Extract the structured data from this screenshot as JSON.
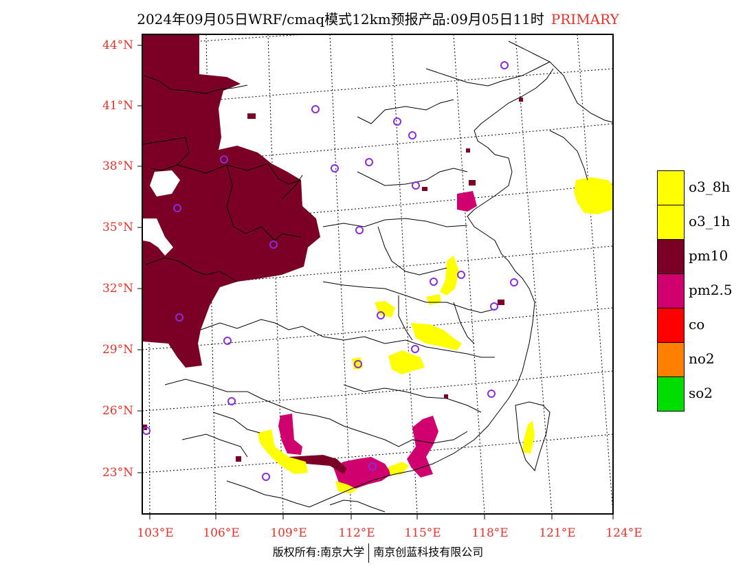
{
  "title": {
    "main": "2024年09月05日WRF/cmaq模式12km预报产品:09月05日11时",
    "tag": "PRIMARY",
    "tag_color": "#e8302a"
  },
  "map": {
    "lat_labels": [
      "44°N",
      "41°N",
      "38°N",
      "35°N",
      "32°N",
      "29°N",
      "26°N",
      "23°N"
    ],
    "lon_labels": [
      "103°E",
      "106°E",
      "109°E",
      "112°E",
      "115°E",
      "118°E",
      "121°E",
      "124°E"
    ],
    "label_color": "#e8302a",
    "station_marker_color": "#8a2be2"
  },
  "legend": {
    "items": [
      {
        "label": "o3_8h",
        "color": "#ffff00"
      },
      {
        "label": "o3_1h",
        "color": "#ffff00"
      },
      {
        "label": "pm10",
        "color": "#7a0026"
      },
      {
        "label": "pm2.5",
        "color": "#d0006f"
      },
      {
        "label": "co",
        "color": "#ff0000"
      },
      {
        "label": "no2",
        "color": "#ff8000"
      },
      {
        "label": "so2",
        "color": "#00dd00"
      }
    ]
  },
  "footer": {
    "left": "版权所有:南京大学",
    "right": "南京创蓝科技有限公司"
  }
}
